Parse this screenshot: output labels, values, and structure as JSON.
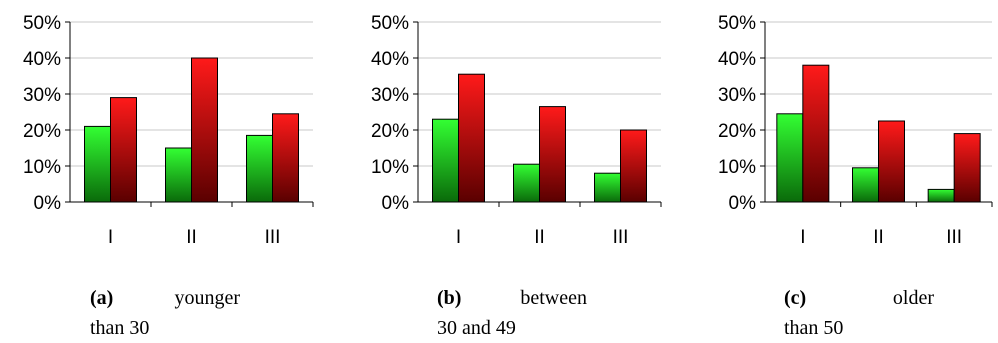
{
  "chart_data": [
    {
      "type": "bar",
      "categories": [
        "I",
        "II",
        "III"
      ],
      "series": [
        {
          "color": "#22cc22",
          "values": [
            21,
            15,
            18.5
          ]
        },
        {
          "color": "#dd1111",
          "values": [
            29,
            40,
            24.5
          ]
        }
      ],
      "yticks": [
        "0%",
        "10%",
        "20%",
        "30%",
        "40%",
        "50%"
      ],
      "ylim": [
        0,
        50
      ],
      "grid": true,
      "caption": {
        "tag": "(a)",
        "word": "younger",
        "rest": "than 30"
      }
    },
    {
      "type": "bar",
      "categories": [
        "I",
        "II",
        "III"
      ],
      "series": [
        {
          "color": "#22cc22",
          "values": [
            23,
            10.5,
            8
          ]
        },
        {
          "color": "#dd1111",
          "values": [
            35.5,
            26.5,
            20
          ]
        }
      ],
      "yticks": [
        "0%",
        "10%",
        "20%",
        "30%",
        "40%",
        "50%"
      ],
      "ylim": [
        0,
        50
      ],
      "grid": true,
      "caption": {
        "tag": "(b)",
        "word": "between",
        "rest": "30 and 49"
      }
    },
    {
      "type": "bar",
      "categories": [
        "I",
        "II",
        "III"
      ],
      "series": [
        {
          "color": "#22cc22",
          "values": [
            24.5,
            9.5,
            3.5
          ]
        },
        {
          "color": "#dd1111",
          "values": [
            38,
            22.5,
            19
          ]
        }
      ],
      "yticks": [
        "0%",
        "10%",
        "20%",
        "30%",
        "40%",
        "50%"
      ],
      "ylim": [
        0,
        50
      ],
      "grid": true,
      "caption": {
        "tag": "(c)",
        "word": "older",
        "rest": "than 50"
      }
    }
  ]
}
